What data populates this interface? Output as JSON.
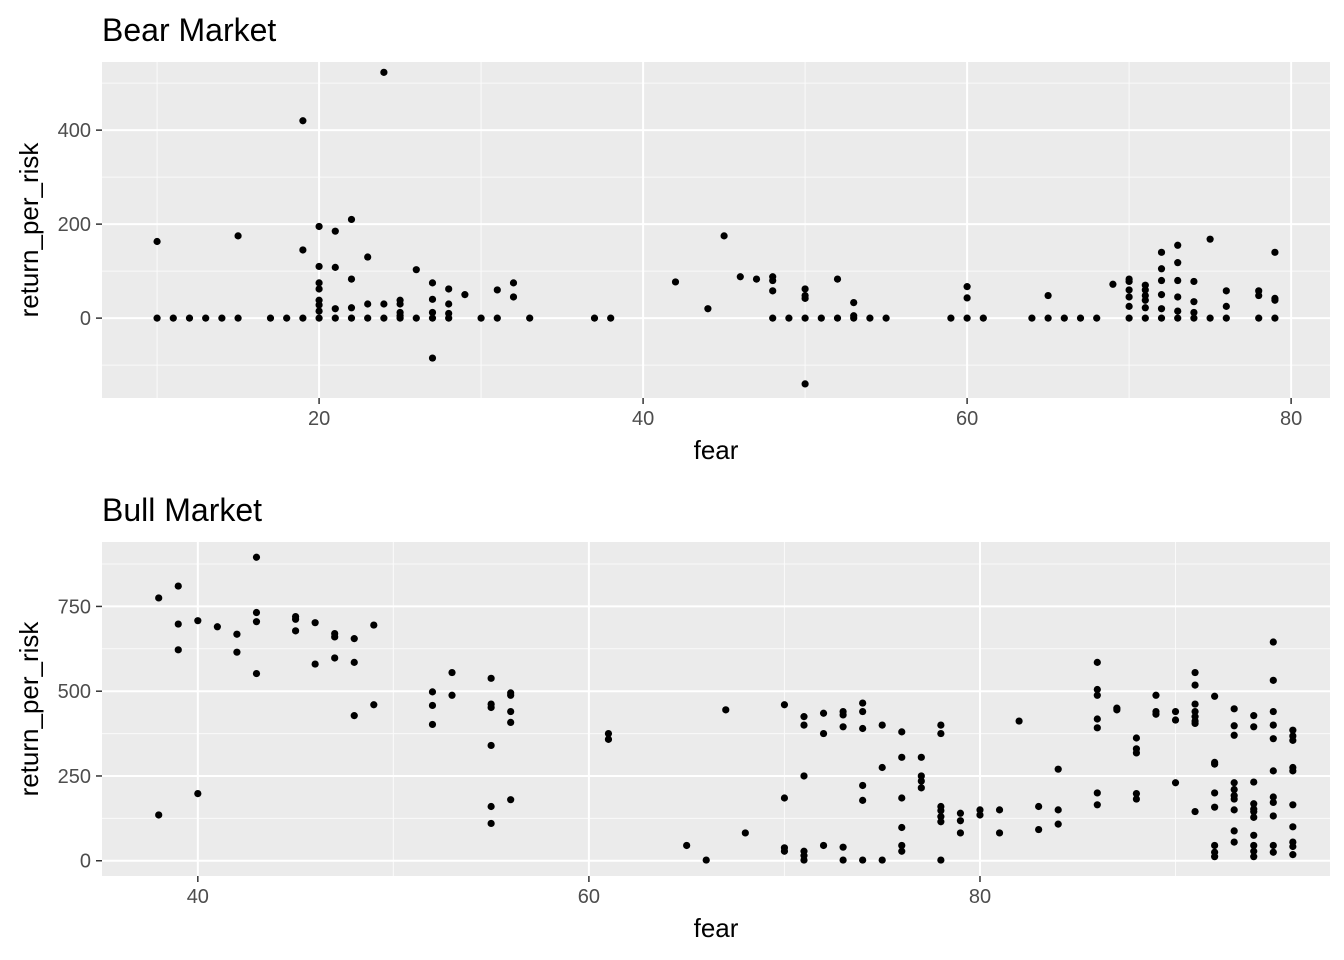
{
  "chart_data": [
    {
      "type": "scatter",
      "title": "Bear Market",
      "xlabel": "fear",
      "ylabel": "return_per_risk",
      "xlim": [
        6.6,
        82.4
      ],
      "ylim": [
        -170,
        545
      ],
      "xticks": [
        20,
        40,
        60,
        80
      ],
      "xticks_minor": [
        10,
        30,
        50,
        70
      ],
      "yticks": [
        0,
        200,
        400
      ],
      "yticks_minor": [
        -100,
        100,
        300,
        500
      ],
      "grid": true,
      "point_color": "#000000",
      "panel_color": "#ebebeb",
      "points": [
        [
          10,
          163
        ],
        [
          10,
          0
        ],
        [
          11,
          0
        ],
        [
          12,
          0
        ],
        [
          13,
          0
        ],
        [
          14,
          0
        ],
        [
          15,
          175
        ],
        [
          15,
          0
        ],
        [
          17,
          0
        ],
        [
          18,
          0
        ],
        [
          19,
          420
        ],
        [
          19,
          145
        ],
        [
          19,
          0
        ],
        [
          20,
          195
        ],
        [
          20,
          110
        ],
        [
          20,
          75
        ],
        [
          20,
          62
        ],
        [
          20,
          38
        ],
        [
          20,
          28
        ],
        [
          20,
          15
        ],
        [
          20,
          0
        ],
        [
          21,
          185
        ],
        [
          21,
          108
        ],
        [
          21,
          20
        ],
        [
          21,
          0
        ],
        [
          22,
          210
        ],
        [
          22,
          83
        ],
        [
          22,
          22
        ],
        [
          22,
          0
        ],
        [
          23,
          130
        ],
        [
          23,
          30
        ],
        [
          23,
          0
        ],
        [
          24,
          523
        ],
        [
          24,
          30
        ],
        [
          24,
          0
        ],
        [
          25,
          38
        ],
        [
          25,
          30
        ],
        [
          25,
          12
        ],
        [
          25,
          5
        ],
        [
          25,
          0
        ],
        [
          26,
          103
        ],
        [
          26,
          0
        ],
        [
          27,
          75
        ],
        [
          27,
          40
        ],
        [
          27,
          12
        ],
        [
          27,
          0
        ],
        [
          27,
          -85
        ],
        [
          28,
          62
        ],
        [
          28,
          30
        ],
        [
          28,
          10
        ],
        [
          28,
          0
        ],
        [
          29,
          50
        ],
        [
          30,
          0
        ],
        [
          31,
          60
        ],
        [
          31,
          0
        ],
        [
          32,
          75
        ],
        [
          32,
          45
        ],
        [
          33,
          0
        ],
        [
          37,
          0
        ],
        [
          38,
          0
        ],
        [
          42,
          77
        ],
        [
          44,
          20
        ],
        [
          45,
          175
        ],
        [
          46,
          88
        ],
        [
          47,
          83
        ],
        [
          48,
          88
        ],
        [
          48,
          80
        ],
        [
          48,
          58
        ],
        [
          48,
          0
        ],
        [
          49,
          0
        ],
        [
          50,
          62
        ],
        [
          50,
          48
        ],
        [
          50,
          42
        ],
        [
          50,
          0
        ],
        [
          50,
          -140
        ],
        [
          51,
          0
        ],
        [
          52,
          83
        ],
        [
          52,
          0
        ],
        [
          53,
          33
        ],
        [
          53,
          5
        ],
        [
          53,
          0
        ],
        [
          54,
          0
        ],
        [
          55,
          0
        ],
        [
          59,
          0
        ],
        [
          60,
          67
        ],
        [
          60,
          43
        ],
        [
          60,
          0
        ],
        [
          61,
          0
        ],
        [
          64,
          0
        ],
        [
          65,
          48
        ],
        [
          65,
          0
        ],
        [
          66,
          0
        ],
        [
          67,
          0
        ],
        [
          68,
          0
        ],
        [
          69,
          72
        ],
        [
          70,
          83
        ],
        [
          70,
          78
        ],
        [
          70,
          60
        ],
        [
          70,
          45
        ],
        [
          70,
          25
        ],
        [
          70,
          0
        ],
        [
          71,
          70
        ],
        [
          71,
          60
        ],
        [
          71,
          48
        ],
        [
          71,
          38
        ],
        [
          71,
          22
        ],
        [
          71,
          0
        ],
        [
          72,
          140
        ],
        [
          72,
          105
        ],
        [
          72,
          80
        ],
        [
          72,
          50
        ],
        [
          72,
          20
        ],
        [
          72,
          0
        ],
        [
          73,
          155
        ],
        [
          73,
          118
        ],
        [
          73,
          80
        ],
        [
          73,
          45
        ],
        [
          73,
          15
        ],
        [
          73,
          0
        ],
        [
          74,
          78
        ],
        [
          74,
          35
        ],
        [
          74,
          12
        ],
        [
          74,
          0
        ],
        [
          75,
          168
        ],
        [
          75,
          0
        ],
        [
          76,
          58
        ],
        [
          76,
          25
        ],
        [
          76,
          0
        ],
        [
          78,
          58
        ],
        [
          78,
          48
        ],
        [
          78,
          0
        ],
        [
          79,
          140
        ],
        [
          79,
          42
        ],
        [
          79,
          38
        ],
        [
          79,
          0
        ]
      ]
    },
    {
      "type": "scatter",
      "title": "Bull Market",
      "xlabel": "fear",
      "ylabel": "return_per_risk",
      "xlim": [
        35.1,
        97.9
      ],
      "ylim": [
        -45,
        940
      ],
      "xticks": [
        40,
        60,
        80
      ],
      "xticks_minor": [
        50,
        70,
        90
      ],
      "yticks": [
        0,
        250,
        500,
        750
      ],
      "yticks_minor": [
        125,
        375,
        625,
        875
      ],
      "grid": true,
      "point_color": "#000000",
      "panel_color": "#ebebeb",
      "points": [
        [
          38,
          775
        ],
        [
          38,
          135
        ],
        [
          39,
          810
        ],
        [
          39,
          698
        ],
        [
          39,
          622
        ],
        [
          40,
          708
        ],
        [
          40,
          198
        ],
        [
          41,
          690
        ],
        [
          42,
          668
        ],
        [
          42,
          615
        ],
        [
          43,
          895
        ],
        [
          43,
          732
        ],
        [
          43,
          705
        ],
        [
          43,
          552
        ],
        [
          45,
          720
        ],
        [
          45,
          712
        ],
        [
          45,
          678
        ],
        [
          46,
          702
        ],
        [
          46,
          580
        ],
        [
          47,
          670
        ],
        [
          47,
          660
        ],
        [
          47,
          598
        ],
        [
          48,
          655
        ],
        [
          48,
          585
        ],
        [
          48,
          428
        ],
        [
          49,
          695
        ],
        [
          49,
          460
        ],
        [
          52,
          498
        ],
        [
          52,
          458
        ],
        [
          52,
          402
        ],
        [
          53,
          555
        ],
        [
          53,
          488
        ],
        [
          55,
          538
        ],
        [
          55,
          462
        ],
        [
          55,
          452
        ],
        [
          55,
          340
        ],
        [
          55,
          160
        ],
        [
          55,
          110
        ],
        [
          56,
          495
        ],
        [
          56,
          488
        ],
        [
          56,
          440
        ],
        [
          56,
          408
        ],
        [
          56,
          180
        ],
        [
          61,
          375
        ],
        [
          61,
          358
        ],
        [
          65,
          45
        ],
        [
          66,
          2
        ],
        [
          67,
          445
        ],
        [
          68,
          82
        ],
        [
          70,
          460
        ],
        [
          70,
          185
        ],
        [
          70,
          38
        ],
        [
          70,
          28
        ],
        [
          71,
          425
        ],
        [
          71,
          400
        ],
        [
          71,
          250
        ],
        [
          71,
          28
        ],
        [
          71,
          15
        ],
        [
          71,
          2
        ],
        [
          72,
          435
        ],
        [
          72,
          375
        ],
        [
          72,
          45
        ],
        [
          73,
          440
        ],
        [
          73,
          430
        ],
        [
          73,
          395
        ],
        [
          73,
          40
        ],
        [
          73,
          2
        ],
        [
          74,
          465
        ],
        [
          74,
          440
        ],
        [
          74,
          390
        ],
        [
          74,
          222
        ],
        [
          74,
          178
        ],
        [
          74,
          2
        ],
        [
          75,
          400
        ],
        [
          75,
          275
        ],
        [
          75,
          2
        ],
        [
          76,
          380
        ],
        [
          76,
          305
        ],
        [
          76,
          185
        ],
        [
          76,
          98
        ],
        [
          76,
          45
        ],
        [
          76,
          28
        ],
        [
          77,
          305
        ],
        [
          77,
          250
        ],
        [
          77,
          235
        ],
        [
          77,
          215
        ],
        [
          78,
          400
        ],
        [
          78,
          375
        ],
        [
          78,
          160
        ],
        [
          78,
          148
        ],
        [
          78,
          130
        ],
        [
          78,
          115
        ],
        [
          78,
          2
        ],
        [
          79,
          140
        ],
        [
          79,
          118
        ],
        [
          79,
          82
        ],
        [
          80,
          150
        ],
        [
          80,
          135
        ],
        [
          81,
          150
        ],
        [
          81,
          82
        ],
        [
          82,
          412
        ],
        [
          83,
          160
        ],
        [
          83,
          92
        ],
        [
          84,
          270
        ],
        [
          84,
          150
        ],
        [
          84,
          108
        ],
        [
          86,
          585
        ],
        [
          86,
          505
        ],
        [
          86,
          488
        ],
        [
          86,
          418
        ],
        [
          86,
          392
        ],
        [
          86,
          200
        ],
        [
          86,
          165
        ],
        [
          87,
          450
        ],
        [
          87,
          445
        ],
        [
          88,
          362
        ],
        [
          88,
          330
        ],
        [
          88,
          318
        ],
        [
          88,
          198
        ],
        [
          88,
          182
        ],
        [
          89,
          488
        ],
        [
          89,
          440
        ],
        [
          89,
          432
        ],
        [
          90,
          440
        ],
        [
          90,
          415
        ],
        [
          90,
          230
        ],
        [
          91,
          555
        ],
        [
          91,
          518
        ],
        [
          91,
          462
        ],
        [
          91,
          440
        ],
        [
          91,
          425
        ],
        [
          91,
          412
        ],
        [
          91,
          405
        ],
        [
          91,
          145
        ],
        [
          92,
          485
        ],
        [
          92,
          290
        ],
        [
          92,
          285
        ],
        [
          92,
          200
        ],
        [
          92,
          158
        ],
        [
          92,
          45
        ],
        [
          92,
          25
        ],
        [
          92,
          12
        ],
        [
          93,
          448
        ],
        [
          93,
          398
        ],
        [
          93,
          370
        ],
        [
          93,
          230
        ],
        [
          93,
          210
        ],
        [
          93,
          192
        ],
        [
          93,
          182
        ],
        [
          93,
          150
        ],
        [
          93,
          88
        ],
        [
          93,
          55
        ],
        [
          94,
          428
        ],
        [
          94,
          395
        ],
        [
          94,
          232
        ],
        [
          94,
          168
        ],
        [
          94,
          152
        ],
        [
          94,
          145
        ],
        [
          94,
          128
        ],
        [
          94,
          75
        ],
        [
          94,
          45
        ],
        [
          94,
          28
        ],
        [
          94,
          12
        ],
        [
          95,
          645
        ],
        [
          95,
          532
        ],
        [
          95,
          440
        ],
        [
          95,
          400
        ],
        [
          95,
          360
        ],
        [
          95,
          265
        ],
        [
          95,
          188
        ],
        [
          95,
          172
        ],
        [
          95,
          132
        ],
        [
          95,
          45
        ],
        [
          95,
          25
        ],
        [
          96,
          385
        ],
        [
          96,
          368
        ],
        [
          96,
          355
        ],
        [
          96,
          275
        ],
        [
          96,
          265
        ],
        [
          96,
          165
        ],
        [
          96,
          100
        ],
        [
          96,
          55
        ],
        [
          96,
          42
        ],
        [
          96,
          18
        ]
      ]
    }
  ]
}
